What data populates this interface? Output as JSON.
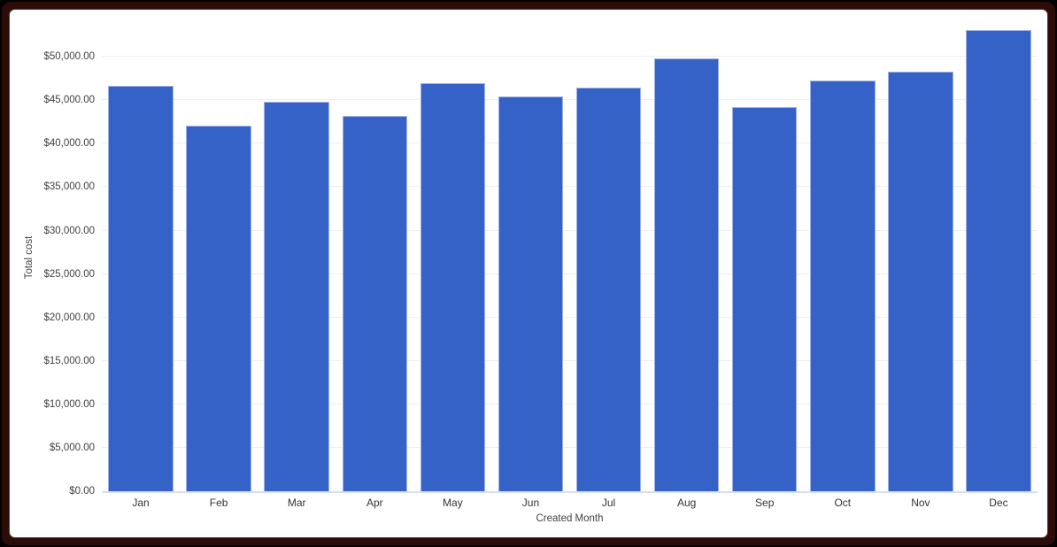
{
  "chart_data": {
    "type": "bar",
    "title": "",
    "categories": [
      "Jan",
      "Feb",
      "Mar",
      "Apr",
      "May",
      "Jun",
      "Jul",
      "Aug",
      "Sep",
      "Oct",
      "Nov",
      "Dec"
    ],
    "values": [
      46700,
      42100,
      44800,
      43200,
      47000,
      45400,
      46500,
      49800,
      44200,
      47300,
      48300,
      53100
    ],
    "series_name": "Total cost",
    "xlabel": "Created Month",
    "ylabel": "Total cost",
    "ylim": [
      0,
      54600
    ],
    "grid": true,
    "legend": "none",
    "y_ticks": [
      {
        "value": 0,
        "label": "$0.00"
      },
      {
        "value": 5000,
        "label": "$5,000.00"
      },
      {
        "value": 10000,
        "label": "$10,000.00"
      },
      {
        "value": 15000,
        "label": "$15,000.00"
      },
      {
        "value": 20000,
        "label": "$20,000.00"
      },
      {
        "value": 25000,
        "label": "$25,000.00"
      },
      {
        "value": 30000,
        "label": "$30,000.00"
      },
      {
        "value": 35000,
        "label": "$35,000.00"
      },
      {
        "value": 40000,
        "label": "$40,000.00"
      },
      {
        "value": 45000,
        "label": "$45,000.00"
      },
      {
        "value": 50000,
        "label": "$50,000.00"
      }
    ]
  },
  "colors": {
    "bar_fill": "#3562c6",
    "bar_stroke": "#9db1e6",
    "gridline": "#efefef",
    "baseline": "#d8def2",
    "tick_text": "#424242",
    "month_text": "#333333",
    "frame_border": "#2d0c08",
    "canvas_background": "#ffffff"
  }
}
